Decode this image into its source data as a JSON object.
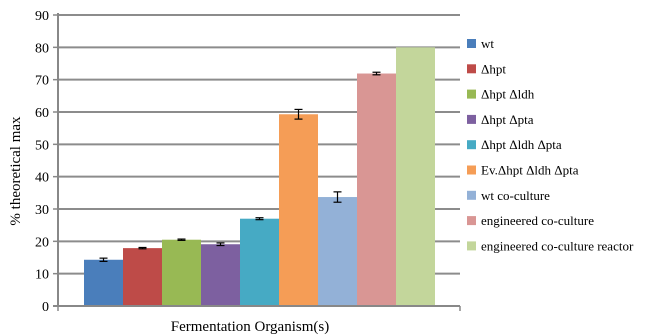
{
  "chart_data": {
    "type": "bar",
    "title": "",
    "xlabel": "Fermentation Organism(s)",
    "ylabel": "% theoretical max",
    "ylim": [
      0,
      90
    ],
    "yticks": [
      0,
      10,
      20,
      30,
      40,
      50,
      60,
      70,
      80,
      90
    ],
    "grid": true,
    "legend_position": "right",
    "series": [
      {
        "name": "wt",
        "value": 14.3,
        "error": 0.5,
        "color": "#4a7ebb"
      },
      {
        "name": "Δhpt",
        "value": 17.9,
        "error": 0.2,
        "color": "#be4b48"
      },
      {
        "name": "Δhpt Δldh",
        "value": 20.5,
        "error": 0.2,
        "color": "#98b954"
      },
      {
        "name": "Δhpt Δpta",
        "value": 19.1,
        "error": 0.4,
        "color": "#7d60a0"
      },
      {
        "name": "Δhpt Δldh Δpta",
        "value": 27.0,
        "error": 0.3,
        "color": "#46aac4"
      },
      {
        "name": "Ev.Δhpt Δldh Δpta",
        "value": 59.3,
        "error": 1.5,
        "color": "#f59d56"
      },
      {
        "name": "wt co-culture",
        "value": 33.7,
        "error": 1.6,
        "color": "#93b1d7"
      },
      {
        "name": "engineered co-culture",
        "value": 71.9,
        "error": 0.4,
        "color": "#d99694"
      },
      {
        "name": "engineered co-culture reactor",
        "value": 80.0,
        "error": 0,
        "color": "#c3d69b"
      }
    ]
  }
}
